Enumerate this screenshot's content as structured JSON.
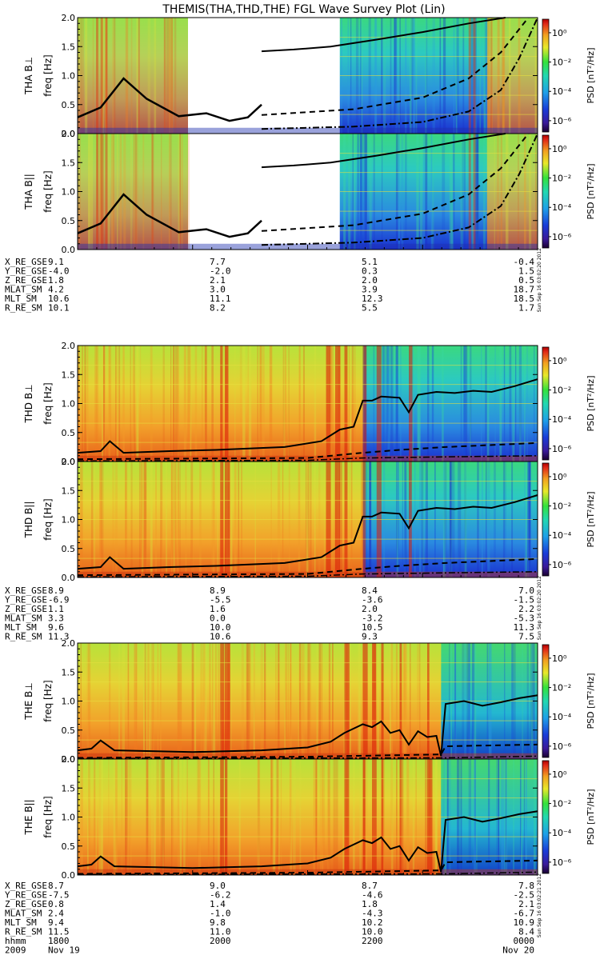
{
  "chart_data": {
    "type": "heatmap",
    "title": "THEMIS(THA,THD,THE) FGL Wave Survey Plot (Lin)",
    "colorbar": {
      "label": "PSD [nT²/Hz]",
      "scale": "log",
      "tick_labels": [
        "10⁰",
        "10⁻²",
        "10⁻⁴",
        "10⁻⁶"
      ],
      "tick_values": [
        1,
        0.01,
        0.0001,
        1e-06
      ]
    },
    "freq_axis": {
      "label": "freq [Hz]",
      "ylim": [
        0,
        2.0
      ],
      "tick_labels": [
        "0.0",
        "0.5",
        "1.0",
        "1.5",
        "2.0"
      ]
    },
    "probes": [
      {
        "name": "THA",
        "panels": [
          {
            "label": "THA B⊥",
            "stamp": ""
          },
          {
            "label": "THA B||",
            "stamp": "Sun Sep 16 03:02:20 2012"
          }
        ],
        "ephemeris": {
          "rows": [
            {
              "name": "X_RE_GSE",
              "values": [
                "9.1",
                "7.7",
                "5.1",
                "-0.4"
              ]
            },
            {
              "name": "Y_RE_GSE",
              "values": [
                "-4.0",
                "-2.0",
                "0.3",
                "1.5"
              ]
            },
            {
              "name": "Z_RE_GSE",
              "values": [
                "1.8",
                "2.1",
                "2.0",
                "0.5"
              ]
            },
            {
              "name": "MLAT_SM",
              "values": [
                "4.2",
                "3.0",
                "3.9",
                "18.7"
              ]
            },
            {
              "name": "MLT_SM",
              "values": [
                "10.6",
                "11.1",
                "12.3",
                "18.5"
              ]
            },
            {
              "name": "R_RE_SM",
              "values": [
                "10.1",
                "8.2",
                "5.5",
                "1.7"
              ]
            }
          ]
        }
      },
      {
        "name": "THD",
        "panels": [
          {
            "label": "THD B⊥",
            "stamp": ""
          },
          {
            "label": "THD B||",
            "stamp": "Sun Sep 16 03:02:20 2012"
          }
        ],
        "ephemeris": {
          "rows": [
            {
              "name": "X_RE_GSE",
              "values": [
                "8.9",
                "8.9",
                "8.4",
                "7.0"
              ]
            },
            {
              "name": "Y_RE_GSE",
              "values": [
                "-6.9",
                "-5.5",
                "-3.6",
                "-1.5"
              ]
            },
            {
              "name": "Z_RE_GSE",
              "values": [
                "1.1",
                "1.6",
                "2.0",
                "2.2"
              ]
            },
            {
              "name": "MLAT_SM",
              "values": [
                "3.3",
                "0.0",
                "-3.2",
                "-5.3"
              ]
            },
            {
              "name": "MLT_SM",
              "values": [
                "9.6",
                "10.0",
                "10.5",
                "11.3"
              ]
            },
            {
              "name": "R_RE_SM",
              "values": [
                "11.3",
                "10.6",
                "9.3",
                "7.5"
              ]
            }
          ]
        }
      },
      {
        "name": "THE",
        "panels": [
          {
            "label": "THE B⊥",
            "stamp": ""
          },
          {
            "label": "THE B||",
            "stamp": "Sun Sep 16 03:02:21 2012"
          }
        ],
        "ephemeris": {
          "rows": [
            {
              "name": "X_RE_GSE",
              "values": [
                "8.7",
                "9.0",
                "8.7",
                "7.8"
              ]
            },
            {
              "name": "Y_RE_GSE",
              "values": [
                "-7.5",
                "-6.2",
                "-4.6",
                "-2.5"
              ]
            },
            {
              "name": "Z_RE_GSE",
              "values": [
                "0.8",
                "1.4",
                "1.8",
                "2.1"
              ]
            },
            {
              "name": "MLAT_SM",
              "values": [
                "2.4",
                "-1.0",
                "-4.3",
                "-6.7"
              ]
            },
            {
              "name": "MLT_SM",
              "values": [
                "9.4",
                "9.8",
                "10.2",
                "10.9"
              ]
            },
            {
              "name": "R_RE_SM",
              "values": [
                "11.5",
                "11.0",
                "10.0",
                "8.4"
              ]
            },
            {
              "name": "hhmm",
              "values": [
                "1800",
                "2000",
                "2200",
                "0000"
              ]
            }
          ],
          "date_row": {
            "name": "2009",
            "values": [
              "Nov 19",
              "",
              "",
              "Nov 20"
            ]
          }
        }
      }
    ],
    "time_axis": {
      "tick_times": [
        "1800",
        "2000",
        "2200",
        "0000"
      ],
      "start_date": "2009 Nov 19",
      "end_date": "Nov 20"
    },
    "overlay_lines": {
      "THA": {
        "solid_bottom": [
          [
            0.0,
            0.28
          ],
          [
            0.05,
            0.45
          ],
          [
            0.1,
            0.95
          ],
          [
            0.15,
            0.6
          ],
          [
            0.22,
            0.3
          ],
          [
            0.28,
            0.35
          ],
          [
            0.33,
            0.22
          ],
          [
            0.37,
            0.28
          ],
          [
            0.4,
            0.5
          ]
        ],
        "solid_top": [
          [
            0.4,
            1.42
          ],
          [
            0.47,
            1.45
          ],
          [
            0.55,
            1.5
          ],
          [
            0.65,
            1.62
          ],
          [
            0.75,
            1.75
          ],
          [
            0.85,
            1.9
          ],
          [
            0.93,
            2.0
          ]
        ],
        "dashed_mid": [
          [
            0.4,
            0.32
          ],
          [
            0.6,
            0.42
          ],
          [
            0.75,
            0.62
          ],
          [
            0.85,
            0.95
          ],
          [
            0.92,
            1.4
          ],
          [
            0.96,
            1.8
          ],
          [
            0.98,
            2.0
          ]
        ],
        "dashdot_low": [
          [
            0.4,
            0.08
          ],
          [
            0.6,
            0.12
          ],
          [
            0.75,
            0.2
          ],
          [
            0.85,
            0.38
          ],
          [
            0.92,
            0.75
          ],
          [
            0.96,
            1.3
          ],
          [
            1.0,
            2.0
          ]
        ],
        "gap_start": 0.24,
        "gap_end": 0.57
      },
      "THD": {
        "solid": [
          [
            0.0,
            0.15
          ],
          [
            0.05,
            0.18
          ],
          [
            0.07,
            0.35
          ],
          [
            0.1,
            0.15
          ],
          [
            0.2,
            0.18
          ],
          [
            0.3,
            0.2
          ],
          [
            0.45,
            0.25
          ],
          [
            0.53,
            0.35
          ],
          [
            0.57,
            0.55
          ],
          [
            0.6,
            0.6
          ],
          [
            0.62,
            1.05
          ],
          [
            0.64,
            1.05
          ],
          [
            0.66,
            1.12
          ],
          [
            0.7,
            1.1
          ],
          [
            0.72,
            0.85
          ],
          [
            0.74,
            1.15
          ],
          [
            0.78,
            1.2
          ],
          [
            0.82,
            1.18
          ],
          [
            0.86,
            1.22
          ],
          [
            0.9,
            1.2
          ],
          [
            0.95,
            1.3
          ],
          [
            1.0,
            1.42
          ]
        ],
        "dashed_low": [
          [
            0.0,
            0.04
          ],
          [
            0.5,
            0.06
          ],
          [
            0.62,
            0.15
          ],
          [
            0.7,
            0.2
          ],
          [
            0.8,
            0.25
          ],
          [
            1.0,
            0.32
          ]
        ],
        "dashdot_low": [
          [
            0.0,
            0.01
          ],
          [
            0.5,
            0.02
          ],
          [
            0.62,
            0.06
          ],
          [
            0.8,
            0.08
          ],
          [
            1.0,
            0.1
          ]
        ]
      },
      "THE": {
        "solid": [
          [
            0.0,
            0.15
          ],
          [
            0.03,
            0.18
          ],
          [
            0.05,
            0.32
          ],
          [
            0.08,
            0.15
          ],
          [
            0.25,
            0.12
          ],
          [
            0.4,
            0.15
          ],
          [
            0.5,
            0.2
          ],
          [
            0.55,
            0.3
          ],
          [
            0.58,
            0.45
          ],
          [
            0.62,
            0.6
          ],
          [
            0.64,
            0.55
          ],
          [
            0.66,
            0.65
          ],
          [
            0.68,
            0.45
          ],
          [
            0.7,
            0.5
          ],
          [
            0.72,
            0.25
          ],
          [
            0.74,
            0.48
          ],
          [
            0.76,
            0.38
          ],
          [
            0.78,
            0.4
          ],
          [
            0.79,
            0.05
          ],
          [
            0.8,
            0.95
          ],
          [
            0.84,
            1.0
          ],
          [
            0.88,
            0.92
          ],
          [
            0.92,
            0.98
          ],
          [
            0.96,
            1.05
          ],
          [
            1.0,
            1.1
          ]
        ],
        "dashed_low": [
          [
            0.0,
            0.02
          ],
          [
            0.5,
            0.04
          ],
          [
            0.79,
            0.08
          ],
          [
            0.8,
            0.22
          ],
          [
            1.0,
            0.25
          ]
        ],
        "dashdot_low": [
          [
            0.0,
            0.01
          ],
          [
            0.8,
            0.02
          ],
          [
            1.0,
            0.05
          ]
        ]
      }
    }
  }
}
